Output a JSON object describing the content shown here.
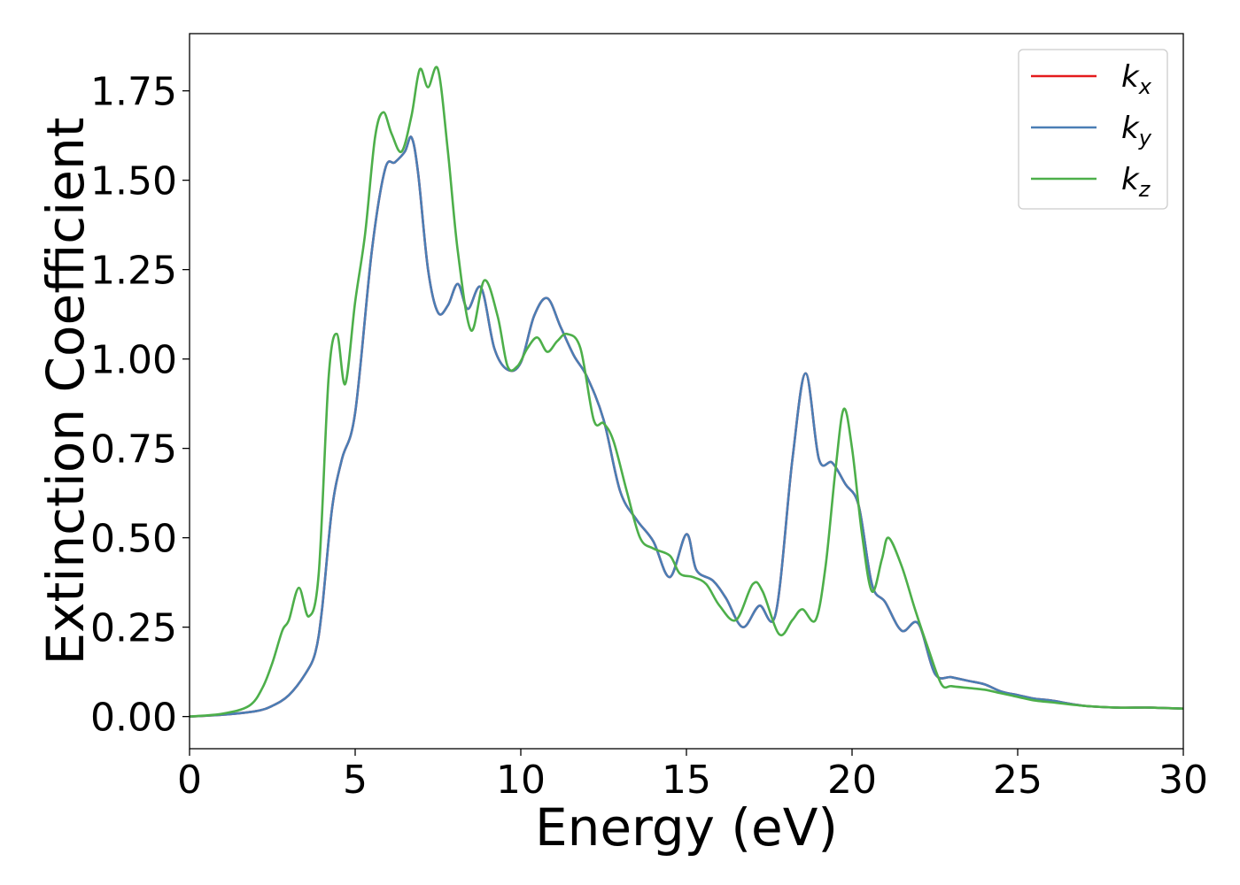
{
  "chart_data": {
    "type": "line",
    "xlabel": "Energy (eV)",
    "ylabel": "Extinction Coefficient",
    "xlim": [
      0,
      30
    ],
    "ylim": [
      -0.09,
      1.91
    ],
    "xticks": [
      0,
      5,
      10,
      15,
      20,
      25,
      30
    ],
    "yticks": [
      0.0,
      0.25,
      0.5,
      0.75,
      1.0,
      1.25,
      1.5,
      1.75
    ],
    "xtick_labels": [
      "0",
      "5",
      "10",
      "15",
      "20",
      "25",
      "30"
    ],
    "ytick_labels": [
      "0.00",
      "0.25",
      "0.50",
      "0.75",
      "1.00",
      "1.25",
      "1.50",
      "1.75"
    ],
    "grid": false,
    "legend_position": "top-right",
    "series": [
      {
        "name": "k",
        "subscript": "x",
        "color": "#e41a1c",
        "x": [
          0,
          1,
          2,
          2.5,
          3,
          3.5,
          3.8,
          4.0,
          4.3,
          4.6,
          5.0,
          5.5,
          5.9,
          6.2,
          6.5,
          6.7,
          6.9,
          7.2,
          7.5,
          7.8,
          8.1,
          8.4,
          8.8,
          9.2,
          9.6,
          10.0,
          10.4,
          10.8,
          11.2,
          11.6,
          12.0,
          12.5,
          13.0,
          13.5,
          14.0,
          14.5,
          15.0,
          15.3,
          15.8,
          16.2,
          16.7,
          17.2,
          17.7,
          18.2,
          18.6,
          19.0,
          19.4,
          19.8,
          20.2,
          20.6,
          21.0,
          21.5,
          22.0,
          22.5,
          23.0,
          23.5,
          24.0,
          24.5,
          25.0,
          25.5,
          26.0,
          27.0,
          28.0,
          29.0,
          30.0
        ],
        "y": [
          0.0,
          0.005,
          0.015,
          0.03,
          0.06,
          0.12,
          0.18,
          0.3,
          0.58,
          0.72,
          0.85,
          1.3,
          1.53,
          1.55,
          1.58,
          1.62,
          1.52,
          1.25,
          1.13,
          1.15,
          1.21,
          1.14,
          1.2,
          1.03,
          0.97,
          0.99,
          1.12,
          1.17,
          1.09,
          1.01,
          0.95,
          0.83,
          0.63,
          0.55,
          0.49,
          0.39,
          0.51,
          0.41,
          0.38,
          0.33,
          0.25,
          0.31,
          0.29,
          0.72,
          0.96,
          0.72,
          0.71,
          0.65,
          0.59,
          0.37,
          0.32,
          0.24,
          0.26,
          0.12,
          0.11,
          0.1,
          0.09,
          0.07,
          0.06,
          0.05,
          0.045,
          0.03,
          0.025,
          0.025,
          0.022
        ]
      },
      {
        "name": "k",
        "subscript": "y",
        "color": "#4a7eb5",
        "x": [
          0,
          1,
          2,
          2.5,
          3,
          3.5,
          3.8,
          4.0,
          4.3,
          4.6,
          5.0,
          5.5,
          5.9,
          6.2,
          6.5,
          6.7,
          6.9,
          7.2,
          7.5,
          7.8,
          8.1,
          8.4,
          8.8,
          9.2,
          9.6,
          10.0,
          10.4,
          10.8,
          11.2,
          11.6,
          12.0,
          12.5,
          13.0,
          13.5,
          14.0,
          14.5,
          15.0,
          15.3,
          15.8,
          16.2,
          16.7,
          17.2,
          17.7,
          18.2,
          18.6,
          19.0,
          19.4,
          19.8,
          20.2,
          20.6,
          21.0,
          21.5,
          22.0,
          22.5,
          23.0,
          23.5,
          24.0,
          24.5,
          25.0,
          25.5,
          26.0,
          27.0,
          28.0,
          29.0,
          30.0
        ],
        "y": [
          0.0,
          0.005,
          0.015,
          0.03,
          0.06,
          0.12,
          0.18,
          0.3,
          0.58,
          0.72,
          0.85,
          1.3,
          1.53,
          1.55,
          1.58,
          1.62,
          1.52,
          1.25,
          1.13,
          1.15,
          1.21,
          1.14,
          1.2,
          1.03,
          0.97,
          0.99,
          1.12,
          1.17,
          1.09,
          1.01,
          0.95,
          0.83,
          0.63,
          0.55,
          0.49,
          0.39,
          0.51,
          0.41,
          0.38,
          0.33,
          0.25,
          0.31,
          0.29,
          0.72,
          0.96,
          0.72,
          0.71,
          0.65,
          0.59,
          0.37,
          0.32,
          0.24,
          0.26,
          0.12,
          0.11,
          0.1,
          0.09,
          0.07,
          0.06,
          0.05,
          0.045,
          0.03,
          0.025,
          0.025,
          0.022
        ]
      },
      {
        "name": "k",
        "subscript": "z",
        "color": "#4daf4a",
        "x": [
          0,
          1,
          1.8,
          2.2,
          2.5,
          2.8,
          3.0,
          3.3,
          3.6,
          3.9,
          4.2,
          4.45,
          4.7,
          5.0,
          5.3,
          5.6,
          5.85,
          6.1,
          6.4,
          6.7,
          6.95,
          7.2,
          7.5,
          7.8,
          8.1,
          8.5,
          8.9,
          9.3,
          9.6,
          9.9,
          10.2,
          10.5,
          10.8,
          11.1,
          11.4,
          11.8,
          12.2,
          12.5,
          12.8,
          13.2,
          13.6,
          14.0,
          14.5,
          14.8,
          15.2,
          15.6,
          16.0,
          16.5,
          17.0,
          17.3,
          17.8,
          18.2,
          18.5,
          18.9,
          19.2,
          19.5,
          19.75,
          20.0,
          20.3,
          20.6,
          20.9,
          21.1,
          21.5,
          21.9,
          22.3,
          22.7,
          23.0,
          23.5,
          24.0,
          24.5,
          25.0,
          25.5,
          26.0,
          27.0,
          28.0,
          29.0,
          30.0
        ],
        "y": [
          0.0,
          0.008,
          0.03,
          0.08,
          0.15,
          0.24,
          0.27,
          0.36,
          0.28,
          0.4,
          0.95,
          1.07,
          0.93,
          1.16,
          1.35,
          1.62,
          1.69,
          1.63,
          1.58,
          1.68,
          1.81,
          1.76,
          1.81,
          1.58,
          1.3,
          1.08,
          1.22,
          1.12,
          0.98,
          0.98,
          1.03,
          1.06,
          1.02,
          1.05,
          1.07,
          1.03,
          0.83,
          0.82,
          0.77,
          0.63,
          0.5,
          0.47,
          0.45,
          0.4,
          0.39,
          0.37,
          0.31,
          0.27,
          0.37,
          0.35,
          0.23,
          0.27,
          0.3,
          0.27,
          0.42,
          0.69,
          0.86,
          0.75,
          0.51,
          0.35,
          0.44,
          0.5,
          0.42,
          0.3,
          0.19,
          0.09,
          0.085,
          0.08,
          0.075,
          0.065,
          0.055,
          0.045,
          0.04,
          0.03,
          0.025,
          0.025,
          0.022
        ]
      }
    ]
  }
}
